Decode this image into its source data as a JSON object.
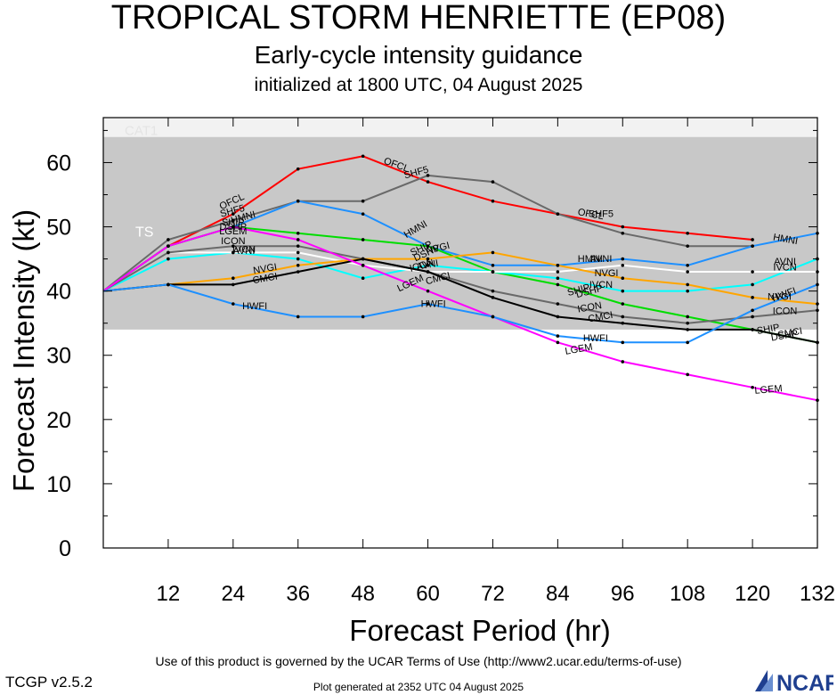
{
  "header": {
    "title": "TROPICAL STORM HENRIETTE (EP08)",
    "subtitle": "Early-cycle intensity guidance",
    "initialized": "initialized at 1800 UTC, 04 August 2025"
  },
  "footer": {
    "terms": "Use of this product is governed by the UCAR Terms of Use (http://www2.ucar.edu/terms-of-use)",
    "version": "TCGP v2.5.2",
    "generated": "Plot generated at 2352 UTC   04 August 2025",
    "logo_text": "NCAR"
  },
  "chart_data": {
    "type": "line",
    "xlabel": "Forecast Period (hr)",
    "ylabel": "Forecast Intensity (kt)",
    "xlim": [
      0,
      132
    ],
    "ylim": [
      0,
      67
    ],
    "xticks": [
      12,
      24,
      36,
      48,
      60,
      72,
      84,
      96,
      108,
      120,
      132
    ],
    "yticks": [
      0,
      10,
      20,
      30,
      40,
      50,
      60
    ],
    "bands": [
      {
        "label": "TS",
        "from": 34,
        "to": 64,
        "color": "#c8c8c8"
      },
      {
        "label": "CAT1",
        "from": 64,
        "to": 67,
        "color": "#f2f2f2"
      }
    ],
    "series": [
      {
        "name": "OFCL",
        "color": "#ff0000",
        "x": [
          0,
          12,
          24,
          36,
          48,
          60,
          72,
          84,
          96,
          108,
          120
        ],
        "values": [
          40,
          47,
          52,
          59,
          61,
          57,
          54,
          52,
          50,
          49,
          48
        ],
        "labels": [
          {
            "text": "OFCL",
            "x": 24,
            "y": 53.5,
            "rot": -25
          },
          {
            "text": "OFCL",
            "x": 54,
            "y": 59.2,
            "rot": 20
          },
          {
            "text": "OFCL",
            "x": 90,
            "y": 51.5,
            "rot": 10
          }
        ]
      },
      {
        "name": "SHF5",
        "color": "#696969",
        "x": [
          0,
          12,
          24,
          36,
          48,
          60,
          72,
          84,
          96,
          108,
          120
        ],
        "values": [
          40,
          48,
          51,
          54,
          54,
          58,
          57,
          52,
          49,
          47,
          47
        ],
        "labels": [
          {
            "text": "SHF5",
            "x": 24,
            "y": 52,
            "rot": -15
          },
          {
            "text": "SHF5",
            "x": 58,
            "y": 58,
            "rot": -15
          },
          {
            "text": "SHF5",
            "x": 92,
            "y": 51.5,
            "rot": 0
          }
        ]
      },
      {
        "name": "HMNI",
        "color": "#1e90ff",
        "x": [
          0,
          12,
          24,
          36,
          48,
          60,
          72,
          84,
          96,
          108,
          120,
          132
        ],
        "values": [
          40,
          47,
          50,
          54,
          52,
          47,
          44,
          44,
          45,
          44,
          47,
          49
        ],
        "labels": [
          {
            "text": "HMNI",
            "x": 26,
            "y": 51,
            "rot": -15
          },
          {
            "text": "HMNI",
            "x": 58,
            "y": 49.2,
            "rot": -30
          },
          {
            "text": "HMNI",
            "x": 90,
            "y": 44.5,
            "rot": 0
          },
          {
            "text": "HMNI",
            "x": 126,
            "y": 47.6,
            "rot": 10
          }
        ]
      },
      {
        "name": "DSHP",
        "color": "#00dd00",
        "x": [
          0,
          12,
          24,
          36,
          48,
          60,
          72,
          84,
          96,
          108,
          120,
          132
        ],
        "values": [
          40,
          47,
          50,
          49,
          48,
          47,
          43,
          41,
          38,
          36,
          34,
          32
        ],
        "labels": [
          {
            "text": "DSHP",
            "x": 24,
            "y": 49.5,
            "rot": 0
          },
          {
            "text": "DSHP",
            "x": 60,
            "y": 45.5,
            "rot": -25
          },
          {
            "text": "DSHP",
            "x": 90,
            "y": 39.5,
            "rot": -15
          },
          {
            "text": "DSHP",
            "x": 126,
            "y": 32.6,
            "rot": -10
          }
        ]
      },
      {
        "name": "SHIP",
        "color": "#00dd00",
        "x": [],
        "values": [],
        "labels": [
          {
            "text": "SHIP",
            "x": 24,
            "y": 50.2,
            "rot": 0
          },
          {
            "text": "SHIP",
            "x": 59,
            "y": 46.2,
            "rot": -25
          },
          {
            "text": "SHIP",
            "x": 88,
            "y": 39.7,
            "rot": -15
          },
          {
            "text": "SHIP",
            "x": 123,
            "y": 33.6,
            "rot": -10
          }
        ]
      },
      {
        "name": "IVCN",
        "color": "#00ffff",
        "x": [
          0,
          12,
          24,
          36,
          48,
          60,
          72,
          84,
          96,
          108,
          120,
          132
        ],
        "values": [
          40,
          45,
          46,
          45,
          42,
          44,
          43,
          42,
          40,
          40,
          41,
          45
        ],
        "labels": [
          {
            "text": "IVCN",
            "x": 26,
            "y": 46,
            "rot": 0
          },
          {
            "text": "IVCN",
            "x": 92,
            "y": 40.5,
            "rot": 0
          },
          {
            "text": "IVCN",
            "x": 126,
            "y": 43.2,
            "rot": 0
          }
        ]
      },
      {
        "name": "AVNI",
        "color": "#ffffff",
        "x": [
          0,
          12,
          24,
          36,
          48,
          60,
          72,
          84,
          96,
          108,
          120,
          132
        ],
        "values": [
          40,
          46,
          46,
          46,
          44,
          43,
          43,
          43,
          44,
          43,
          43,
          43
        ],
        "labels": [
          {
            "text": "AVNI",
            "x": 26,
            "y": 45.8,
            "rot": 0
          },
          {
            "text": "AVNI",
            "x": 60,
            "y": 43.6,
            "rot": -10
          },
          {
            "text": "AVNI",
            "x": 92,
            "y": 44.5,
            "rot": 0
          },
          {
            "text": "AVNI",
            "x": 126,
            "y": 44.1,
            "rot": 0
          }
        ]
      },
      {
        "name": "ICON",
        "color": "#696969",
        "x": [
          0,
          12,
          24,
          36,
          48,
          60,
          72,
          84,
          96,
          108,
          120,
          132
        ],
        "values": [
          40,
          46,
          47,
          47,
          45,
          43,
          40,
          38,
          36,
          35,
          36,
          37
        ],
        "labels": [
          {
            "text": "ICON",
            "x": 24,
            "y": 47.3,
            "rot": 0
          },
          {
            "text": "ICON",
            "x": 59,
            "y": 43.5,
            "rot": -15
          },
          {
            "text": "ICON",
            "x": 90,
            "y": 37,
            "rot": -10
          },
          {
            "text": "ICON",
            "x": 126,
            "y": 36.4,
            "rot": 0
          }
        ]
      },
      {
        "name": "NVGI",
        "color": "#ffa500",
        "x": [
          0,
          12,
          24,
          36,
          48,
          60,
          72,
          84,
          96,
          108,
          120,
          132
        ],
        "values": [
          40,
          41,
          42,
          44,
          45,
          45,
          46,
          44,
          42,
          41,
          39,
          38
        ],
        "labels": [
          {
            "text": "NVGI",
            "x": 30,
            "y": 43,
            "rot": -10
          },
          {
            "text": "NVGI",
            "x": 62,
            "y": 46.2,
            "rot": -15
          },
          {
            "text": "NVGI",
            "x": 93,
            "y": 42.3,
            "rot": 0
          },
          {
            "text": "NVGI",
            "x": 125,
            "y": 38.6,
            "rot": 0
          }
        ]
      },
      {
        "name": "CMCI",
        "color": "#000000",
        "x": [
          0,
          12,
          24,
          36,
          48,
          60,
          72,
          84,
          96,
          108,
          120,
          132
        ],
        "values": [
          40,
          41,
          41,
          43,
          45,
          43,
          39,
          36,
          35,
          34,
          34,
          32
        ],
        "labels": [
          {
            "text": "CMCI",
            "x": 30,
            "y": 41.5,
            "rot": -10
          },
          {
            "text": "CMCI",
            "x": 62,
            "y": 41.5,
            "rot": -15
          },
          {
            "text": "CMCI",
            "x": 92,
            "y": 35.5,
            "rot": -10
          },
          {
            "text": "CMCI",
            "x": 127,
            "y": 33,
            "rot": -10
          }
        ]
      },
      {
        "name": "LGEM",
        "color": "#ff00ff",
        "x": [
          0,
          12,
          24,
          36,
          48,
          60,
          72,
          84,
          96,
          108,
          120,
          132
        ],
        "values": [
          40,
          47,
          50,
          48,
          44,
          40,
          36,
          32,
          29,
          27,
          25,
          23
        ],
        "labels": [
          {
            "text": "LGEM",
            "x": 24,
            "y": 48.8,
            "rot": 0
          },
          {
            "text": "LGEM",
            "x": 57,
            "y": 40.8,
            "rot": -25
          },
          {
            "text": "LGEM",
            "x": 88,
            "y": 30.5,
            "rot": -10
          },
          {
            "text": "LGEM",
            "x": 123,
            "y": 24.2,
            "rot": -5
          }
        ]
      },
      {
        "name": "HWFI",
        "color": "#1e90ff",
        "x": [
          0,
          12,
          24,
          36,
          48,
          60,
          72,
          84,
          96,
          108,
          120,
          132
        ],
        "values": [
          40,
          41,
          38,
          36,
          36,
          38,
          36,
          33,
          32,
          32,
          37,
          41
        ],
        "labels": [
          {
            "text": "HWFI",
            "x": 28,
            "y": 37.2,
            "rot": 0
          },
          {
            "text": "HWFI",
            "x": 61,
            "y": 37.5,
            "rot": 0
          },
          {
            "text": "HWFI",
            "x": 91,
            "y": 32.2,
            "rot": 0
          },
          {
            "text": "HWFI",
            "x": 126,
            "y": 39,
            "rot": -20
          }
        ]
      }
    ]
  }
}
